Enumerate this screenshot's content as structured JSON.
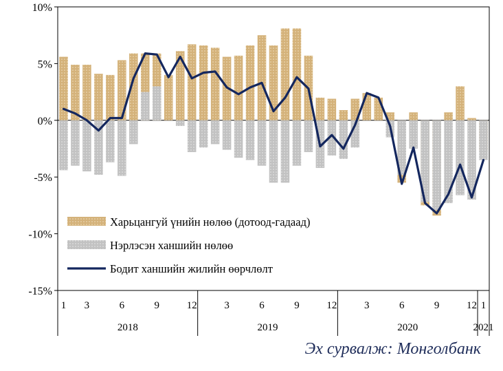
{
  "source_note": "Эх сурвалж: Монголбанк",
  "chart_data": {
    "type": "bar",
    "title": "",
    "xlabel": "",
    "ylabel": "",
    "ylim": [
      -15,
      10
    ],
    "y_ticks": [
      10,
      5,
      0,
      -5,
      -10,
      -15
    ],
    "y_tick_labels": [
      "10%",
      "5%",
      "0%",
      "-5%",
      "-10%",
      "-15%"
    ],
    "grid": false,
    "legend_position": "bottom-left",
    "month_tick_labels": [
      {
        "index": 0,
        "label": "1"
      },
      {
        "index": 2,
        "label": "3"
      },
      {
        "index": 5,
        "label": "6"
      },
      {
        "index": 8,
        "label": "9"
      },
      {
        "index": 11,
        "label": "12"
      },
      {
        "index": 14,
        "label": "3"
      },
      {
        "index": 17,
        "label": "6"
      },
      {
        "index": 20,
        "label": "9"
      },
      {
        "index": 23,
        "label": "12"
      },
      {
        "index": 26,
        "label": "3"
      },
      {
        "index": 29,
        "label": "6"
      },
      {
        "index": 32,
        "label": "9"
      },
      {
        "index": 35,
        "label": "12"
      },
      {
        "index": 36,
        "label": "1"
      }
    ],
    "year_labels": [
      {
        "label": "2018",
        "start": 0,
        "end": 11
      },
      {
        "label": "2019",
        "start": 12,
        "end": 23
      },
      {
        "label": "2020",
        "start": 24,
        "end": 35
      },
      {
        "label": "2021",
        "start": 36,
        "end": 36
      }
    ],
    "x": [
      "2018-01",
      "2018-02",
      "2018-03",
      "2018-04",
      "2018-05",
      "2018-06",
      "2018-07",
      "2018-08",
      "2018-09",
      "2018-10",
      "2018-11",
      "2018-12",
      "2019-01",
      "2019-02",
      "2019-03",
      "2019-04",
      "2019-05",
      "2019-06",
      "2019-07",
      "2019-08",
      "2019-09",
      "2019-10",
      "2019-11",
      "2019-12",
      "2020-01",
      "2020-02",
      "2020-03",
      "2020-04",
      "2020-05",
      "2020-06",
      "2020-07",
      "2020-08",
      "2020-09",
      "2020-10",
      "2020-11",
      "2020-12",
      "2021-01"
    ],
    "series": [
      {
        "name": "Харьцангуй үнийн нөлөө (дотоод-гадаад)",
        "kind": "bar",
        "color": "#d4b27a",
        "values": [
          5.6,
          4.9,
          4.9,
          4.1,
          4.0,
          5.3,
          5.9,
          5.9,
          5.9,
          4.0,
          6.1,
          6.7,
          6.6,
          6.4,
          5.6,
          5.7,
          6.6,
          7.5,
          6.6,
          8.1,
          8.1,
          5.7,
          2.0,
          1.9,
          0.9,
          1.9,
          2.4,
          2.0,
          0.7,
          -5.5,
          0.7,
          -7.5,
          -8.4,
          0.7,
          3.0,
          0.2,
          -2.7
        ]
      },
      {
        "name": "Нэрлэсэн ханшийн нөлөө",
        "kind": "bar",
        "color": "#c0c0c0",
        "values": [
          -4.4,
          -4.0,
          -4.5,
          -4.8,
          -3.7,
          -4.9,
          -2.1,
          2.5,
          3.0,
          0.0,
          -0.5,
          -2.8,
          -2.4,
          -2.1,
          -2.6,
          -3.3,
          -3.5,
          -4.0,
          -5.5,
          -5.5,
          -4.0,
          -2.8,
          -4.2,
          -3.1,
          -3.4,
          -2.4,
          0.0,
          0.0,
          -1.5,
          -4.8,
          -2.5,
          -7.2,
          -7.9,
          -7.3,
          -6.6,
          -7.0,
          -3.5
        ]
      },
      {
        "name": "Бодит ханшийн жилийн өөрчлөлт",
        "kind": "line",
        "color": "#14275e",
        "values": [
          1.0,
          0.6,
          0.0,
          -0.9,
          0.2,
          0.2,
          3.7,
          5.9,
          5.8,
          3.8,
          5.6,
          3.7,
          4.2,
          4.3,
          2.9,
          2.3,
          2.9,
          3.3,
          0.8,
          2.0,
          3.8,
          2.8,
          -2.3,
          -1.3,
          -2.5,
          -0.4,
          2.4,
          2.0,
          -0.5,
          -5.6,
          -2.4,
          -7.3,
          -8.2,
          -6.5,
          -3.9,
          -6.8,
          -3.5
        ]
      }
    ]
  }
}
